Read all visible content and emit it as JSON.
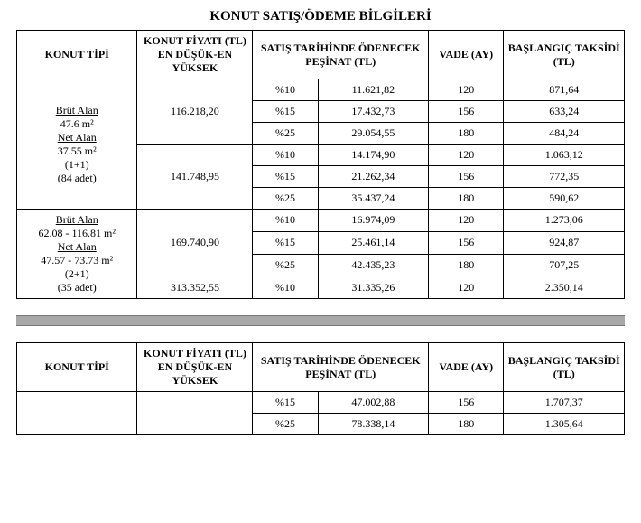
{
  "title": "KONUT SATIŞ/ÖDEME BİLGİLERİ",
  "headers": {
    "type": "KONUT TİPİ",
    "price": "KONUT FİYATI (TL) EN DÜŞÜK-EN YÜKSEK",
    "downpayment": "SATIŞ TARİHİNDE ÖDENECEK PEŞİNAT (TL)",
    "term": "VADE (AY)",
    "start": "BAŞLANGIÇ TAKSİDİ (TL)"
  },
  "groups": [
    {
      "type_lines": {
        "l1": "Brüt Alan",
        "l2": "47.6 m²",
        "l3": "Net Alan",
        "l4": "37.55 m²",
        "l5": "(1+1)",
        "l6": "(84 adet)"
      },
      "blocks": [
        {
          "price": "116.218,20",
          "rows": [
            {
              "pct": "%10",
              "amount": "11.621,82",
              "term": "120",
              "start": "871,64"
            },
            {
              "pct": "%15",
              "amount": "17.432,73",
              "term": "156",
              "start": "633,24"
            },
            {
              "pct": "%25",
              "amount": "29.054,55",
              "term": "180",
              "start": "484,24"
            }
          ]
        },
        {
          "price": "141.748,95",
          "rows": [
            {
              "pct": "%10",
              "amount": "14.174,90",
              "term": "120",
              "start": "1.063,12"
            },
            {
              "pct": "%15",
              "amount": "21.262,34",
              "term": "156",
              "start": "772,35"
            },
            {
              "pct": "%25",
              "amount": "35.437,24",
              "term": "180",
              "start": "590,62"
            }
          ]
        }
      ]
    },
    {
      "type_lines": {
        "l1": "Brüt Alan",
        "l2": "62.08 - 116.81 m²",
        "l3": "Net Alan",
        "l4": "47.57 - 73.73 m²",
        "l5": "(2+1)",
        "l6": "(35 adet)"
      },
      "blocks": [
        {
          "price": "169.740,90",
          "rows": [
            {
              "pct": "%10",
              "amount": "16.974,09",
              "term": "120",
              "start": "1.273,06"
            },
            {
              "pct": "%15",
              "amount": "25.461,14",
              "term": "156",
              "start": "924,87"
            },
            {
              "pct": "%25",
              "amount": "42.435,23",
              "term": "180",
              "start": "707,25"
            }
          ]
        },
        {
          "price": "313.352,55",
          "rows": [
            {
              "pct": "%10",
              "amount": "31.335,26",
              "term": "120",
              "start": "2.350,14"
            }
          ]
        }
      ]
    }
  ],
  "second_table_rows": [
    {
      "pct": "%15",
      "amount": "47.002,88",
      "term": "156",
      "start": "1.707,37"
    },
    {
      "pct": "%25",
      "amount": "78.338,14",
      "term": "180",
      "start": "1.305,64"
    }
  ]
}
